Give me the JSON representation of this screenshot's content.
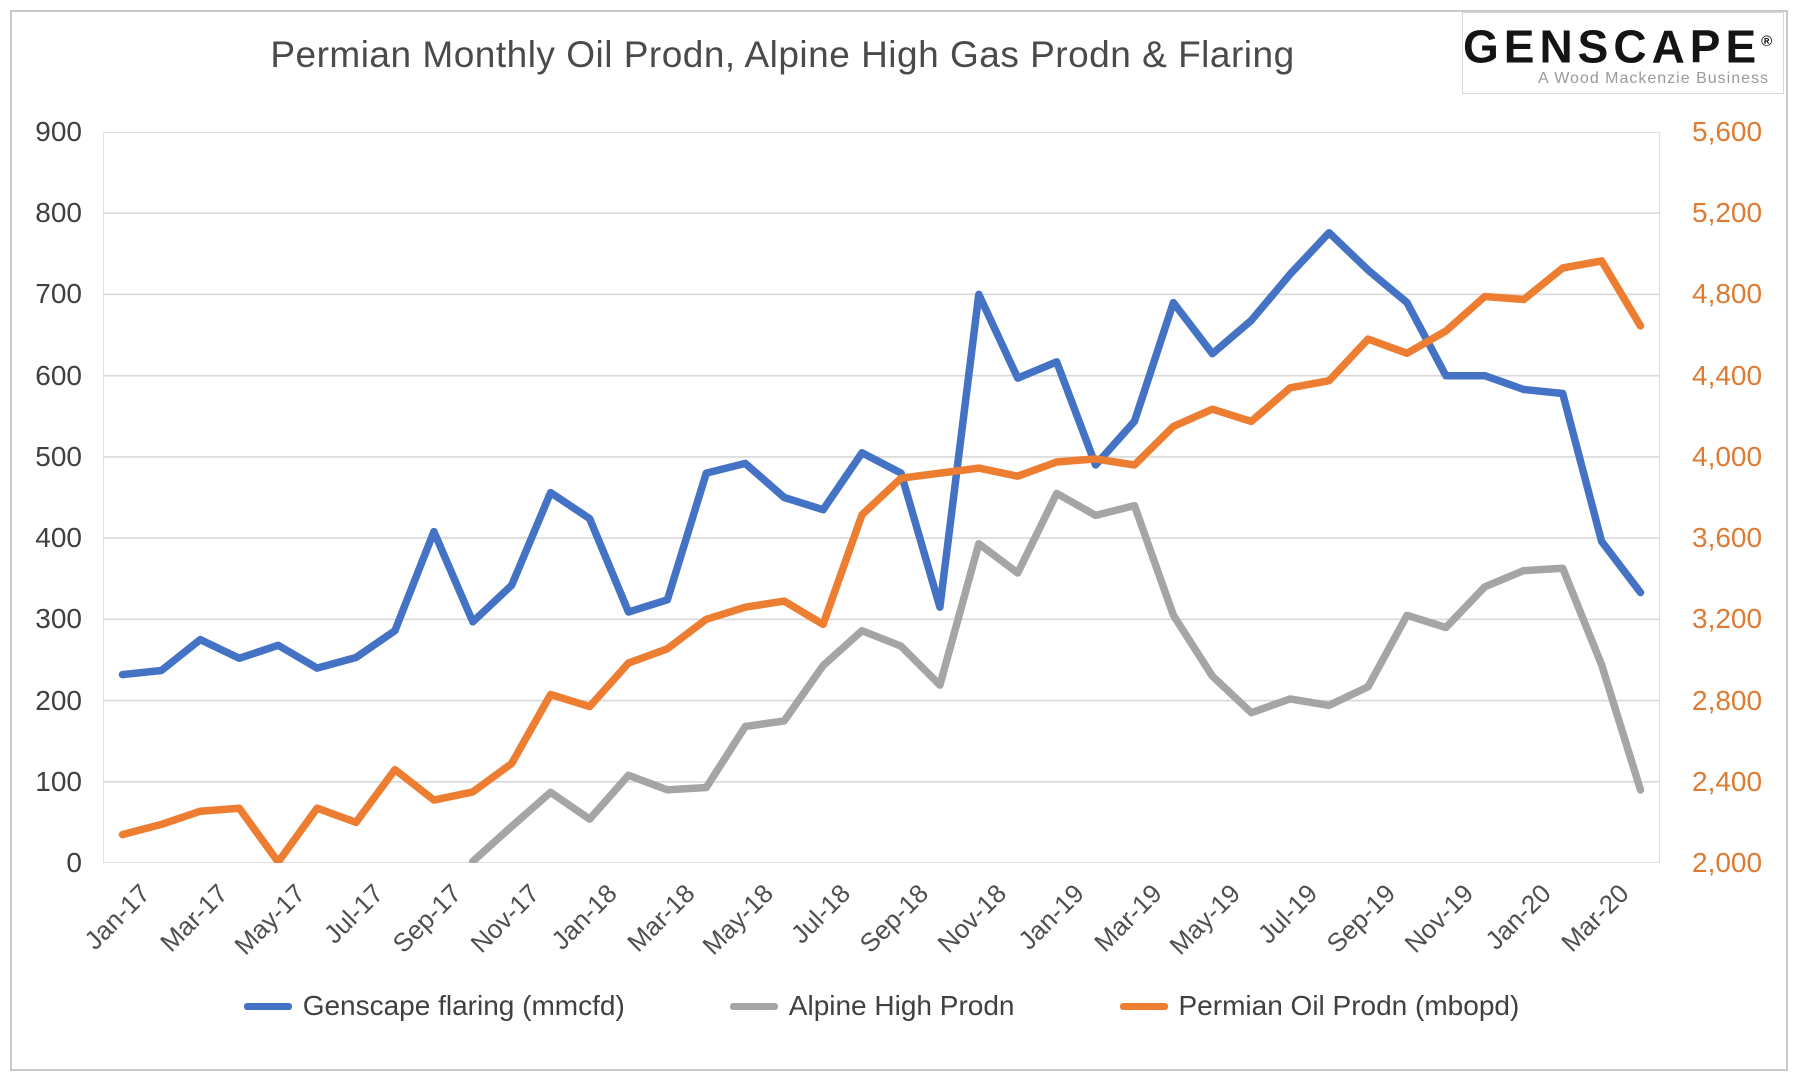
{
  "title": "Permian Monthly Oil Prodn, Alpine High Gas Prodn & Flaring",
  "logo": {
    "brand": "GENSCAPE",
    "registered_mark": "®",
    "tagline": "A Wood Mackenzie Business"
  },
  "colors": {
    "flaring_blue": "#4472C4",
    "alpine_gray": "#A5A5A5",
    "permian_orange": "#ED7D31",
    "gridline": "#D9D9D9",
    "left_tick_text": "#404040",
    "right_tick_text": "#DD7B33"
  },
  "legend": {
    "items": [
      {
        "label": "Genscape flaring (mmcfd)",
        "color": "#4472C4"
      },
      {
        "label": "Alpine High Prodn",
        "color": "#A5A5A5"
      },
      {
        "label": "Permian Oil Prodn (mbopd)",
        "color": "#ED7D31"
      }
    ]
  },
  "chart_data": {
    "type": "line",
    "title": "Permian Monthly Oil Prodn, Alpine High Gas Prodn & Flaring",
    "grid": true,
    "legend_position": "bottom",
    "x": [
      "Jan-17",
      "Feb-17",
      "Mar-17",
      "Apr-17",
      "May-17",
      "Jun-17",
      "Jul-17",
      "Aug-17",
      "Sep-17",
      "Oct-17",
      "Nov-17",
      "Dec-17",
      "Jan-18",
      "Feb-18",
      "Mar-18",
      "Apr-18",
      "May-18",
      "Jun-18",
      "Jul-18",
      "Aug-18",
      "Sep-18",
      "Oct-18",
      "Nov-18",
      "Dec-18",
      "Jan-19",
      "Feb-19",
      "Mar-19",
      "Apr-19",
      "May-19",
      "Jun-19",
      "Jul-19",
      "Aug-19",
      "Sep-19",
      "Oct-19",
      "Nov-19",
      "Dec-19",
      "Jan-20",
      "Feb-20",
      "Mar-20",
      "Apr-20"
    ],
    "x_tick_labels": [
      "Jan-17",
      "Mar-17",
      "May-17",
      "Jul-17",
      "Sep-17",
      "Nov-17",
      "Jan-18",
      "Mar-18",
      "May-18",
      "Jul-18",
      "Sep-18",
      "Nov-18",
      "Jan-19",
      "Mar-19",
      "May-19",
      "Jul-19",
      "Sep-19",
      "Nov-19",
      "Jan-20",
      "Mar-20"
    ],
    "x_tick_step": 2,
    "left_axis": {
      "min": 0,
      "max": 900,
      "step": 100,
      "tick_labels": [
        "0",
        "100",
        "200",
        "300",
        "400",
        "500",
        "600",
        "700",
        "800",
        "900"
      ]
    },
    "right_axis": {
      "min": 2000,
      "max": 5600,
      "step": 400,
      "tick_labels": [
        "2,000",
        "2,400",
        "2,800",
        "3,200",
        "3,600",
        "4,000",
        "4,400",
        "4,800",
        "5,200",
        "5,600"
      ]
    },
    "series": [
      {
        "name": "Genscape flaring (mmcfd)",
        "axis": "left",
        "color": "#4472C4",
        "values": [
          232,
          237,
          275,
          252,
          268,
          240,
          253,
          286,
          408,
          297,
          342,
          456,
          424,
          309,
          324,
          480,
          492,
          450,
          435,
          505,
          480,
          315,
          700,
          597,
          617,
          490,
          544,
          690,
          627,
          668,
          725,
          776,
          730,
          690,
          600,
          600,
          583,
          578,
          396,
          333
        ]
      },
      {
        "name": "Alpine High Prodn",
        "axis": "left",
        "color": "#A5A5A5",
        "values": [
          null,
          null,
          null,
          null,
          null,
          null,
          null,
          null,
          null,
          2,
          45,
          87,
          54,
          108,
          90,
          93,
          168,
          175,
          243,
          286,
          267,
          219,
          393,
          357,
          455,
          428,
          440,
          305,
          230,
          185,
          202,
          194,
          217,
          305,
          290,
          340,
          360,
          363,
          244,
          90
        ]
      },
      {
        "name": "Permian Oil Prodn (mbopd)",
        "axis": "right",
        "color": "#ED7D31",
        "values": [
          2140,
          2190,
          2255,
          2270,
          2005,
          2270,
          2200,
          2460,
          2310,
          2350,
          2490,
          2830,
          2770,
          2985,
          3055,
          3200,
          3260,
          3290,
          3175,
          3715,
          3895,
          3920,
          3945,
          3905,
          3975,
          3990,
          3960,
          4150,
          4235,
          4175,
          4340,
          4375,
          4580,
          4510,
          4620,
          4790,
          4775,
          4930,
          4965,
          4645
        ]
      }
    ]
  }
}
